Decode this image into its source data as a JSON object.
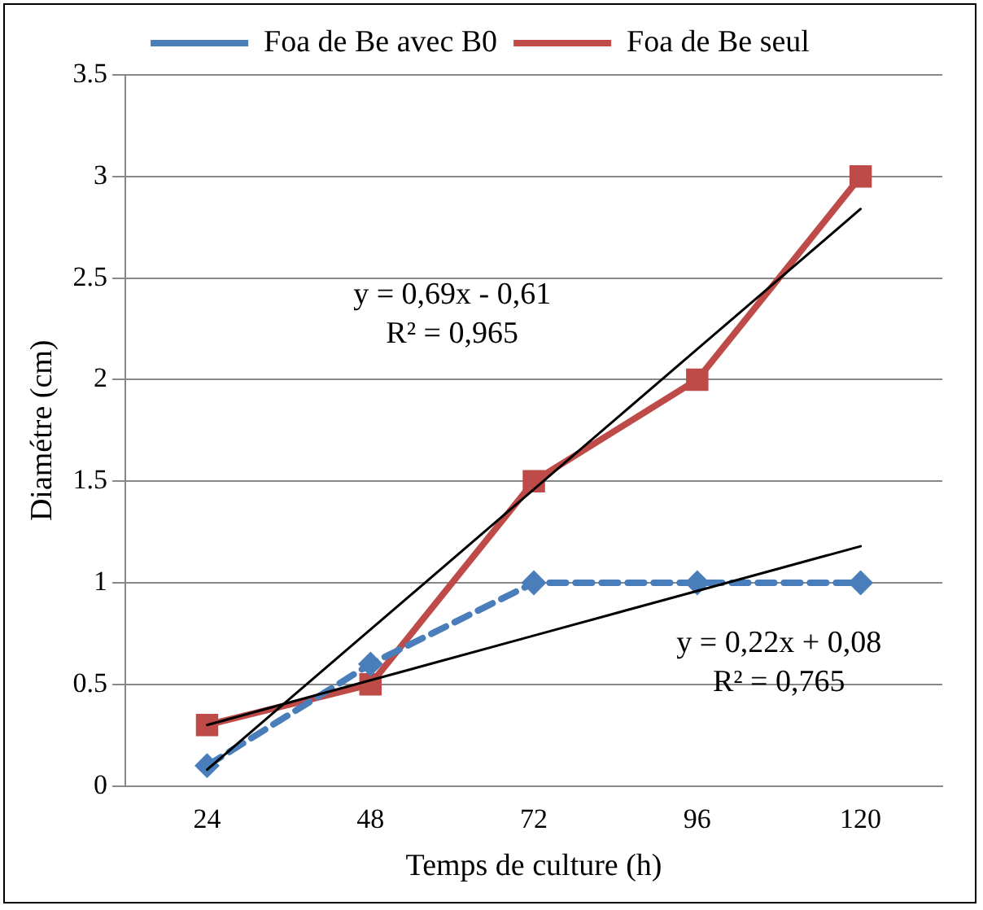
{
  "chart_data": {
    "type": "line",
    "xlabel": "Temps de culture (h)",
    "ylabel": "Diamétre (cm)",
    "x": [
      24,
      48,
      72,
      96,
      120
    ],
    "xlim": [
      12,
      132
    ],
    "xticks": [
      24,
      48,
      72,
      96,
      120
    ],
    "ylim": [
      0,
      3.5
    ],
    "yticks": [
      0,
      0.5,
      1,
      1.5,
      2,
      2.5,
      3,
      3.5
    ],
    "grid": "y",
    "legend": "top",
    "series": [
      {
        "name": "Foa de Be avec B0",
        "color": "#4a7ebb",
        "values": [
          0.1,
          0.6,
          1,
          1,
          1
        ],
        "marker": "diamond",
        "line_style": "dashed"
      },
      {
        "name": "Foa de Be seul",
        "color": "#be4b48",
        "values": [
          0.3,
          0.5,
          1.5,
          2,
          3
        ],
        "marker": "square",
        "line_style": "solid"
      },
      {
        "type": "line",
        "color": "#000000",
        "values": [
          0.08,
          0.77,
          1.46,
          2.15,
          2.84
        ],
        "marker": "none",
        "line_style": "solid"
      },
      {
        "type": "line",
        "color": "#000000",
        "values": [
          0.3,
          0.52,
          0.74,
          0.96,
          1.18
        ],
        "marker": "none",
        "line_style": "solid"
      }
    ],
    "annotations": [
      "y = 0,69x - 0,61\nR² = 0,965",
      "y = 0,22x + 0,08\nR² = 0,765"
    ]
  }
}
